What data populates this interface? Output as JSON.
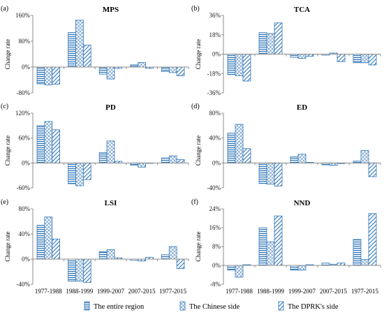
{
  "chart_data": [
    {
      "type": "bar",
      "panel": "(a)",
      "title": "MPS",
      "ylabel": "Change rate",
      "ylim": [
        -80,
        160
      ],
      "yticks": [
        -80,
        0,
        80,
        160
      ],
      "yticklabels": [
        "-80%",
        "0%",
        "80%",
        "160%"
      ],
      "categories": [
        "1977-1988",
        "1988-1999",
        "1999-2007",
        "2007-2015",
        "1977-2015"
      ],
      "series": [
        {
          "name": "The entire region",
          "values": [
            -52,
            107,
            -22,
            7,
            -14
          ]
        },
        {
          "name": "The Chinese side",
          "values": [
            -55,
            145,
            -37,
            14,
            -17
          ]
        },
        {
          "name": "The DPRK's side",
          "values": [
            -53,
            68,
            -4,
            -4,
            -27
          ]
        }
      ]
    },
    {
      "type": "bar",
      "panel": "(b)",
      "title": "TCA",
      "ylabel": "Change rate",
      "ylim": [
        -36,
        36
      ],
      "yticks": [
        -36,
        -18,
        0,
        18,
        36
      ],
      "yticklabels": [
        "-36%",
        "-18%",
        "0%",
        "18%",
        "36%"
      ],
      "categories": [
        "1977-1988",
        "1988-1999",
        "1999-2007",
        "2007-2015",
        "1977-2015"
      ],
      "series": [
        {
          "name": "The entire region",
          "values": [
            -19,
            20,
            -3,
            -1,
            -8
          ]
        },
        {
          "name": "The Chinese side",
          "values": [
            -20,
            19,
            -4,
            1,
            -8
          ]
        },
        {
          "name": "The DPRK's side",
          "values": [
            -25,
            29,
            -2,
            -7,
            -10
          ]
        }
      ]
    },
    {
      "type": "bar",
      "panel": "(c)",
      "title": "PD",
      "ylabel": "Change rate",
      "ylim": [
        -60,
        120
      ],
      "yticks": [
        -60,
        0,
        60,
        120
      ],
      "yticklabels": [
        "-60%",
        "0%",
        "60%",
        "120%"
      ],
      "categories": [
        "1977-1988",
        "1988-1999",
        "1999-2007",
        "2007-2015",
        "1977-2015"
      ],
      "series": [
        {
          "name": "The entire region",
          "values": [
            90,
            -50,
            25,
            -5,
            12
          ]
        },
        {
          "name": "The Chinese side",
          "values": [
            100,
            -55,
            53,
            -10,
            17
          ]
        },
        {
          "name": "The DPRK's side",
          "values": [
            80,
            -40,
            4,
            -1,
            8
          ]
        }
      ]
    },
    {
      "type": "bar",
      "panel": "(d)",
      "title": "ED",
      "ylabel": "Change rate",
      "ylim": [
        -40,
        80
      ],
      "yticks": [
        -40,
        0,
        40,
        80
      ],
      "yticklabels": [
        "-40%",
        "0%",
        "40%",
        "80%"
      ],
      "categories": [
        "1977-1988",
        "1988-1999",
        "1999-2007",
        "2007-2015",
        "1977-2015"
      ],
      "series": [
        {
          "name": "The entire region",
          "values": [
            48,
            -33,
            10,
            -3,
            3
          ]
        },
        {
          "name": "The Chinese side",
          "values": [
            62,
            -34,
            14,
            -4,
            20
          ]
        },
        {
          "name": "The DPRK's side",
          "values": [
            23,
            -37,
            1,
            -1,
            -22
          ]
        }
      ]
    },
    {
      "type": "bar",
      "panel": "(e)",
      "title": "LSI",
      "ylabel": "Change rate",
      "ylim": [
        -40,
        80
      ],
      "yticks": [
        -40,
        0,
        40,
        80
      ],
      "yticklabels": [
        "-40%",
        "0%",
        "40%",
        "80%"
      ],
      "categories": [
        "1977-1988",
        "1988-1999",
        "1999-2007",
        "2007-2015",
        "1977-2015"
      ],
      "series": [
        {
          "name": "The entire region",
          "values": [
            54,
            -35,
            12,
            -2,
            7
          ]
        },
        {
          "name": "The Chinese side",
          "values": [
            67,
            -35,
            15,
            -3,
            20
          ]
        },
        {
          "name": "The DPRK's side",
          "values": [
            32,
            -37,
            2,
            3,
            -15
          ]
        }
      ]
    },
    {
      "type": "bar",
      "panel": "(f)",
      "title": "NND",
      "ylabel": "Change rate",
      "ylim": [
        -8,
        24
      ],
      "yticks": [
        -8,
        0,
        8,
        16,
        24
      ],
      "yticklabels": [
        "-8%",
        "0%",
        "8%",
        "16%",
        "24%"
      ],
      "categories": [
        "1977-1988",
        "1988-1999",
        "1999-2007",
        "2007-2015",
        "1977-2015"
      ],
      "series": [
        {
          "name": "The entire region",
          "values": [
            -2,
            16,
            -2,
            1,
            11
          ]
        },
        {
          "name": "The Chinese side",
          "values": [
            -5,
            10,
            -2,
            0.5,
            2.5
          ]
        },
        {
          "name": "The DPRK's side",
          "values": [
            0.3,
            21,
            0.3,
            1,
            22
          ]
        }
      ]
    }
  ],
  "legend": [
    {
      "key": "horizontal",
      "label": "The entire region"
    },
    {
      "key": "crosshatch",
      "label": "The Chinese side"
    },
    {
      "key": "diagonal",
      "label": "The DPRK's side"
    }
  ],
  "colors": {
    "bar_stroke": "#2e75b6",
    "bar_fill": "#ffffff",
    "axis": "#8c8c8c"
  }
}
